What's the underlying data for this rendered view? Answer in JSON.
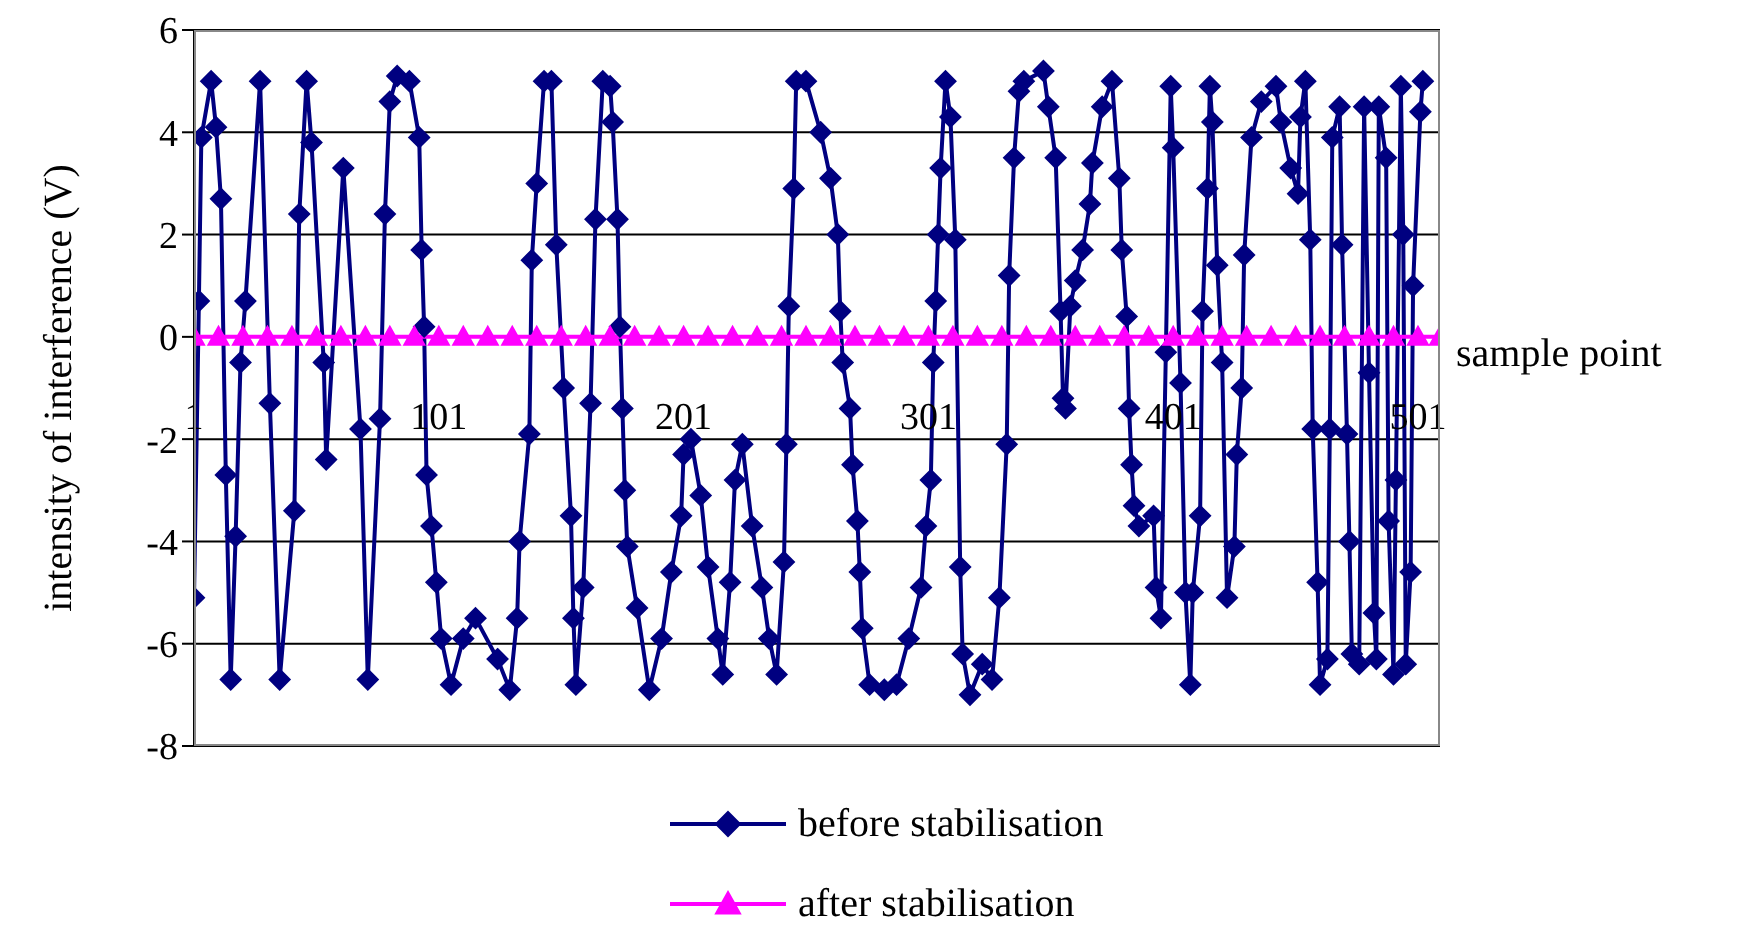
{
  "chart_data": {
    "type": "line",
    "xlabel": "sample point",
    "ylabel": "intensity of interference (V)",
    "xlim": [
      1,
      510
    ],
    "xticks": [
      1,
      101,
      201,
      301,
      401,
      501
    ],
    "ylim": [
      -8,
      6
    ],
    "yticks": [
      -8,
      -6,
      -4,
      -2,
      0,
      2,
      4,
      6
    ],
    "grid": "y",
    "legend": "bottom",
    "line_style": "solid",
    "series": [
      {
        "name": "before stabilisation",
        "color": "#000080",
        "marker": "diamond",
        "x": [
          1,
          3,
          4,
          8,
          10,
          12,
          14,
          16,
          18,
          20,
          22,
          28,
          32,
          36,
          42,
          44,
          47,
          49,
          54,
          55,
          62,
          69,
          72,
          77,
          79,
          81,
          84,
          89,
          93,
          94,
          95,
          96,
          98,
          100,
          102,
          106,
          111,
          116,
          125,
          130,
          133,
          134,
          138,
          139,
          141,
          144,
          147,
          149,
          152,
          155,
          156,
          157,
          160,
          163,
          165,
          168,
          171,
          172,
          174,
          175,
          176,
          177,
          178,
          182,
          187,
          192,
          196,
          200,
          201,
          204,
          208,
          211,
          215,
          217,
          220,
          222,
          225,
          229,
          233,
          236,
          239,
          242,
          243,
          244,
          246,
          247,
          251,
          257,
          261,
          264,
          265,
          266,
          269,
          270,
          272,
          273,
          274,
          277,
          283,
          288,
          293,
          298,
          300,
          302,
          303,
          304,
          305,
          306,
          308,
          310,
          312,
          314,
          315,
          318,
          323,
          327,
          330,
          333,
          334,
          336,
          338,
          340,
          348,
          350,
          353,
          355,
          356,
          357,
          359,
          361,
          364,
          367,
          368,
          372,
          376,
          379,
          380,
          382,
          383,
          384,
          385,
          387,
          393,
          394,
          396,
          398,
          400,
          401,
          404,
          406,
          408,
          409,
          412,
          413,
          415,
          416,
          417,
          419,
          421,
          423,
          426,
          427,
          429,
          430,
          433,
          437,
          443,
          445,
          449,
          452,
          453,
          455,
          457,
          458,
          460,
          461,
          464,
          465,
          466,
          469,
          470,
          472,
          473,
          474,
          477,
          479,
          481,
          483,
          484,
          485,
          488,
          489,
          491,
          492,
          494,
          495,
          496,
          498,
          499,
          502,
          503
        ],
        "values": [
          -5.1,
          0.7,
          3.9,
          5.0,
          4.1,
          2.7,
          -2.7,
          -6.7,
          -3.9,
          -0.5,
          0.7,
          5.0,
          -1.3,
          -6.7,
          -3.4,
          2.4,
          5.0,
          3.8,
          -0.5,
          -2.4,
          3.3,
          -1.8,
          -6.7,
          -1.6,
          2.4,
          4.6,
          5.1,
          5.0,
          3.9,
          1.7,
          0.2,
          -2.7,
          -3.7,
          -4.8,
          -5.9,
          -6.8,
          -5.9,
          -5.5,
          -6.3,
          -6.9,
          -5.5,
          -4.0,
          -1.9,
          1.5,
          3.0,
          5.0,
          5.0,
          1.8,
          -1.0,
          -3.5,
          -5.5,
          -6.8,
          -4.9,
          -1.3,
          2.3,
          5.0,
          4.9,
          4.2,
          2.3,
          0.2,
          -1.4,
          -3.0,
          -4.1,
          -5.3,
          -6.9,
          -5.9,
          -4.6,
          -3.5,
          -2.3,
          -2.0,
          -3.1,
          -4.5,
          -5.9,
          -6.6,
          -4.8,
          -2.8,
          -2.1,
          -3.7,
          -4.9,
          -5.9,
          -6.6,
          -4.4,
          -2.1,
          0.6,
          2.9,
          5.0,
          5.0,
          4.0,
          3.1,
          2.0,
          0.5,
          -0.5,
          -1.4,
          -2.5,
          -3.6,
          -4.6,
          -5.7,
          -6.8,
          -6.9,
          -6.8,
          -5.9,
          -4.9,
          -3.7,
          -2.8,
          -0.5,
          0.7,
          2.0,
          3.3,
          5.0,
          4.3,
          1.9,
          -4.5,
          -6.2,
          -7.0,
          -6.4,
          -6.7,
          -5.1,
          -2.1,
          1.2,
          3.5,
          4.8,
          5.0,
          5.2,
          4.5,
          3.5,
          0.5,
          -1.2,
          -1.4,
          0.6,
          1.1,
          1.7,
          2.6,
          3.4,
          4.5,
          5.0,
          3.1,
          1.7,
          0.4,
          -1.4,
          -2.5,
          -3.3,
          -3.7,
          -3.5,
          -4.9,
          -5.5,
          -0.3,
          4.9,
          3.7,
          -0.9,
          -5.0,
          -6.8,
          -5.0,
          -3.5,
          0.5,
          2.9,
          4.9,
          4.2,
          1.4,
          -0.5,
          -5.1,
          -4.1,
          -2.3,
          -1.0,
          1.6,
          3.9,
          4.6,
          4.9,
          4.2,
          3.3,
          2.8,
          4.3,
          5.0,
          1.9,
          -1.8,
          -4.8,
          -6.8,
          -6.3,
          -1.8,
          3.9,
          4.5,
          1.8,
          -1.9,
          -4.0,
          -6.2,
          -6.4,
          4.5,
          -0.7,
          -5.4,
          -6.3,
          4.5,
          3.5,
          -3.6,
          -6.6,
          -2.8,
          4.9,
          2.0,
          -6.4,
          -4.6,
          1.0,
          4.4,
          5.0
        ]
      },
      {
        "name": "after stabilisation",
        "color": "#ff00ff",
        "marker": "triangle",
        "x": [
          1,
          11,
          21,
          31,
          41,
          51,
          61,
          71,
          81,
          91,
          101,
          111,
          121,
          131,
          141,
          151,
          161,
          171,
          181,
          191,
          201,
          211,
          221,
          231,
          241,
          251,
          261,
          271,
          281,
          291,
          301,
          311,
          321,
          331,
          341,
          351,
          361,
          371,
          381,
          391,
          401,
          411,
          421,
          431,
          441,
          451,
          461,
          471,
          481,
          491,
          501,
          510
        ],
        "values": [
          0,
          0,
          0,
          0,
          0,
          0,
          0,
          0,
          0,
          0,
          0,
          0,
          0,
          0,
          0,
          0,
          0,
          0,
          0,
          0,
          0,
          0,
          0,
          0,
          0,
          0,
          0,
          0,
          0,
          0,
          0,
          0,
          0,
          0,
          0,
          0,
          0,
          0,
          0,
          0,
          0,
          0,
          0,
          0,
          0,
          0,
          0,
          0,
          0,
          0,
          0,
          0
        ]
      }
    ]
  }
}
